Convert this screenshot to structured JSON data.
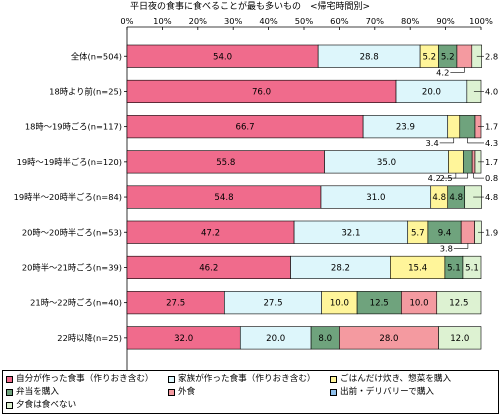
{
  "chart_data": {
    "type": "bar",
    "orientation": "horizontal",
    "stacked": true,
    "title": "平日夜の食事に食べることが最も多いもの　<帰宅時間別>",
    "x_ticks": [
      "0%",
      "10%",
      "20%",
      "30%",
      "40%",
      "50%",
      "60%",
      "70%",
      "80%",
      "90%",
      "100%"
    ],
    "xlim": [
      0,
      100
    ],
    "categories": [
      "全体(n=504)",
      "18時より前(n=25)",
      "18時～19時ごろ(n=117)",
      "19時～19時半ごろ(n=120)",
      "19時半～20時半ごろ(n=84)",
      "20時～20時半ごろ(n=53)",
      "20時半～21時ごろ(n=39)",
      "21時～22時ごろ(n=40)",
      "22時以降(n=25)"
    ],
    "series": [
      {
        "name": "自分が作った食事（作りおき含む）",
        "color": "#F06B8C",
        "values": [
          54.0,
          76.0,
          66.7,
          55.8,
          54.8,
          47.2,
          46.2,
          27.5,
          32.0
        ]
      },
      {
        "name": "家族が作った食事（作りおき含む）",
        "color": "#DDF6FB",
        "values": [
          28.8,
          20.0,
          23.9,
          35.0,
          31.0,
          32.1,
          28.2,
          27.5,
          20.0
        ]
      },
      {
        "name": "ごはんだけ炊き、惣菜を購入",
        "color": "#FFF59A",
        "values": [
          5.2,
          0,
          3.4,
          4.2,
          4.8,
          5.7,
          15.4,
          10.0,
          0
        ]
      },
      {
        "name": "弁当を購入",
        "color": "#6FA37D",
        "values": [
          5.2,
          0,
          4.3,
          2.5,
          4.8,
          9.4,
          5.1,
          12.5,
          8.0
        ]
      },
      {
        "name": "外食",
        "color": "#F49AA0",
        "values": [
          4.2,
          0,
          1.7,
          0.8,
          0,
          3.8,
          0,
          10.0,
          28.0
        ]
      },
      {
        "name": "出前・デリバリーで購入",
        "color": "#8FC0EC",
        "values": [
          0,
          0,
          0,
          0,
          0,
          0,
          0,
          0,
          0
        ]
      },
      {
        "name": "夕食は食べない",
        "color": "#DDF2D2",
        "values": [
          2.8,
          4.0,
          0,
          1.7,
          4.8,
          1.9,
          5.1,
          12.5,
          12.0
        ]
      }
    ],
    "bar_labels": [
      [
        "54.0",
        "28.8",
        "5.2",
        "5.2",
        "",
        "",
        ""
      ],
      [
        "76.0",
        "20.0",
        "",
        "",
        "",
        "",
        ""
      ],
      [
        "66.7",
        "23.9",
        "",
        "",
        "",
        "",
        ""
      ],
      [
        "55.8",
        "35.0",
        "",
        "",
        "",
        "",
        ""
      ],
      [
        "54.8",
        "31.0",
        "4.8",
        "4.8",
        "",
        "",
        ""
      ],
      [
        "47.2",
        "32.1",
        "5.7",
        "9.4",
        "",
        "",
        ""
      ],
      [
        "46.2",
        "28.2",
        "15.4",
        "5.1",
        "",
        "",
        "5.1"
      ],
      [
        "27.5",
        "27.5",
        "10.0",
        "12.5",
        "10.0",
        "",
        "12.5"
      ],
      [
        "32.0",
        "20.0",
        "",
        "8.0",
        "28.0",
        "",
        "12.0"
      ]
    ],
    "callouts": [
      {
        "row": 0,
        "label": "4.2",
        "series": 4,
        "side": "below"
      },
      {
        "row": 0,
        "label": "2.8",
        "series": 6,
        "side": "right"
      },
      {
        "row": 1,
        "label": "4.0",
        "series": 6,
        "side": "right"
      },
      {
        "row": 2,
        "label": "3.4",
        "series": 2,
        "side": "below"
      },
      {
        "row": 2,
        "label": "4.3",
        "series": 3,
        "side": "below-right"
      },
      {
        "row": 2,
        "label": "1.7",
        "series": 4,
        "side": "right"
      },
      {
        "row": 3,
        "label": "4.2",
        "series": 2,
        "side": "below"
      },
      {
        "row": 3,
        "label": "2.5",
        "series": 3,
        "side": "below"
      },
      {
        "row": 3,
        "label": "1.7",
        "series": 6,
        "side": "right"
      },
      {
        "row": 3,
        "label": "0.8",
        "series": 4,
        "side": "below-right"
      },
      {
        "row": 4,
        "label": "4.8",
        "series": 6,
        "side": "right"
      },
      {
        "row": 5,
        "label": "1.9",
        "series": 6,
        "side": "right"
      },
      {
        "row": 5,
        "label": "3.8",
        "series": 4,
        "side": "below"
      }
    ],
    "legend_position": "bottom",
    "grid": false
  },
  "legend": {
    "items": [
      {
        "label": "自分が作った食事（作りおき含む）",
        "color": "#F06B8C"
      },
      {
        "label": "家族が作った食事（作りおき含む）",
        "color": "#DDF6FB"
      },
      {
        "label": "ごはんだけ炊き、惣菜を購入",
        "color": "#FFF59A"
      },
      {
        "label": "弁当を購入",
        "color": "#6FA37D"
      },
      {
        "label": "外食",
        "color": "#F49AA0"
      },
      {
        "label": "出前・デリバリーで購入",
        "color": "#8FC0EC"
      },
      {
        "label": "夕食は食べない",
        "color": "#DDF2D2"
      }
    ]
  }
}
